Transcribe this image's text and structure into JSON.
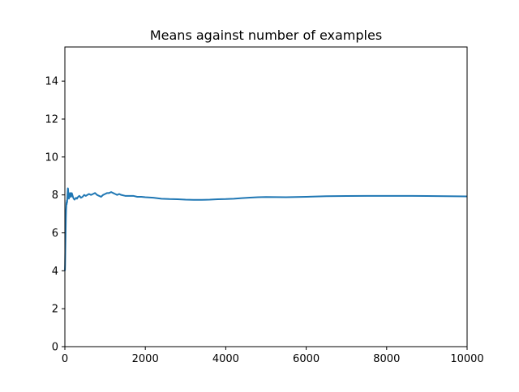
{
  "chart_data": {
    "type": "line",
    "title": "Means against number of examples",
    "xlabel": "",
    "ylabel": "",
    "xlim": [
      0,
      10000
    ],
    "ylim": [
      0,
      15.8
    ],
    "x_ticks": [
      0,
      2000,
      4000,
      6000,
      8000,
      10000
    ],
    "x_tick_labels": [
      "0",
      "2000",
      "4000",
      "6000",
      "8000",
      "10000"
    ],
    "y_ticks": [
      0,
      2,
      4,
      6,
      8,
      10,
      12,
      14
    ],
    "y_tick_labels": [
      "0",
      "2",
      "4",
      "6",
      "8",
      "10",
      "12",
      "14"
    ],
    "grid": false,
    "legend": false,
    "series": [
      {
        "color": "#1f77b4",
        "x": [
          1,
          5,
          10,
          15,
          20,
          25,
          30,
          35,
          40,
          45,
          50,
          55,
          60,
          65,
          70,
          75,
          80,
          85,
          90,
          100,
          110,
          120,
          130,
          140,
          150,
          160,
          170,
          180,
          200,
          220,
          240,
          260,
          280,
          300,
          330,
          360,
          400,
          440,
          480,
          520,
          560,
          600,
          650,
          700,
          750,
          800,
          850,
          900,
          950,
          1000,
          1050,
          1100,
          1150,
          1200,
          1250,
          1300,
          1350,
          1400,
          1500,
          1600,
          1700,
          1800,
          1900,
          2000,
          2200,
          2400,
          2600,
          2800,
          3000,
          3200,
          3400,
          3600,
          3800,
          4000,
          4200,
          4400,
          4600,
          4800,
          5000,
          5500,
          6000,
          6500,
          7000,
          7500,
          8000,
          8500,
          9000,
          9500,
          10000
        ],
        "values": [
          4.0,
          4.3,
          5.0,
          5.6,
          6.2,
          6.8,
          7.2,
          7.4,
          7.6,
          7.5,
          7.7,
          7.6,
          7.8,
          8.0,
          8.2,
          8.35,
          8.3,
          8.1,
          7.9,
          7.8,
          7.9,
          8.05,
          8.1,
          8.0,
          7.9,
          7.95,
          8.1,
          8.05,
          7.9,
          7.8,
          7.75,
          7.8,
          7.85,
          7.8,
          7.9,
          7.95,
          7.85,
          7.9,
          8.0,
          7.95,
          8.0,
          8.05,
          8.0,
          8.05,
          8.1,
          8.0,
          7.95,
          7.9,
          8.0,
          8.05,
          8.1,
          8.1,
          8.15,
          8.1,
          8.05,
          8.0,
          8.05,
          8.0,
          7.95,
          7.95,
          7.95,
          7.9,
          7.9,
          7.88,
          7.85,
          7.8,
          7.78,
          7.77,
          7.75,
          7.74,
          7.74,
          7.75,
          7.77,
          7.78,
          7.8,
          7.83,
          7.86,
          7.88,
          7.89,
          7.88,
          7.9,
          7.93,
          7.94,
          7.95,
          7.95,
          7.95,
          7.94,
          7.93,
          7.92
        ]
      }
    ]
  }
}
